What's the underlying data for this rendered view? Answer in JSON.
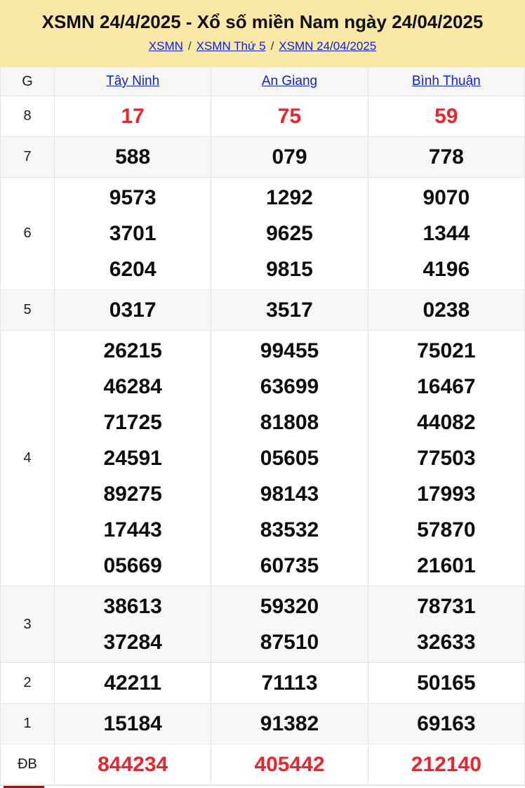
{
  "header": {
    "title": "XSMN 24/4/2025 - Xổ số miền Nam ngày 24/04/2025",
    "breadcrumb": [
      {
        "label": "XSMN"
      },
      {
        "label": "XSMN Thứ 5"
      },
      {
        "label": "XSMN 24/04/2025"
      }
    ],
    "breadcrumb_separator": "/"
  },
  "table": {
    "corner_label": "G",
    "provinces": [
      "Tây Ninh",
      "An Giang",
      "Bình Thuận"
    ],
    "rows": [
      {
        "prize": "8",
        "highlight": "red",
        "cells": [
          [
            "17"
          ],
          [
            "75"
          ],
          [
            "59"
          ]
        ]
      },
      {
        "prize": "7",
        "highlight": "black",
        "cells": [
          [
            "588"
          ],
          [
            "079"
          ],
          [
            "778"
          ]
        ]
      },
      {
        "prize": "6",
        "highlight": "black",
        "cells": [
          [
            "9573",
            "3701",
            "6204"
          ],
          [
            "1292",
            "9625",
            "9815"
          ],
          [
            "9070",
            "1344",
            "4196"
          ]
        ]
      },
      {
        "prize": "5",
        "highlight": "black",
        "cells": [
          [
            "0317"
          ],
          [
            "3517"
          ],
          [
            "0238"
          ]
        ]
      },
      {
        "prize": "4",
        "highlight": "black",
        "cells": [
          [
            "26215",
            "46284",
            "71725",
            "24591",
            "89275",
            "17443",
            "05669"
          ],
          [
            "99455",
            "63699",
            "81808",
            "05605",
            "98143",
            "83532",
            "60735"
          ],
          [
            "75021",
            "16467",
            "44082",
            "77503",
            "17993",
            "57870",
            "21601"
          ]
        ]
      },
      {
        "prize": "3",
        "highlight": "black",
        "cells": [
          [
            "38613",
            "37284"
          ],
          [
            "59320",
            "87510"
          ],
          [
            "78731",
            "32633"
          ]
        ]
      },
      {
        "prize": "2",
        "highlight": "black",
        "cells": [
          [
            "42211"
          ],
          [
            "71113"
          ],
          [
            "50165"
          ]
        ]
      },
      {
        "prize": "1",
        "highlight": "black",
        "cells": [
          [
            "15184"
          ],
          [
            "91382"
          ],
          [
            "69163"
          ]
        ]
      },
      {
        "prize": "ĐB",
        "highlight": "red",
        "cells": [
          [
            "844234"
          ],
          [
            "405442"
          ],
          [
            "212140"
          ]
        ]
      }
    ]
  },
  "colors": {
    "header_bg": "#FAE9A6",
    "link_blue": "#0D1ED6",
    "accent_red": "#E8262D",
    "stripe_gray": "#F7F7F7"
  }
}
